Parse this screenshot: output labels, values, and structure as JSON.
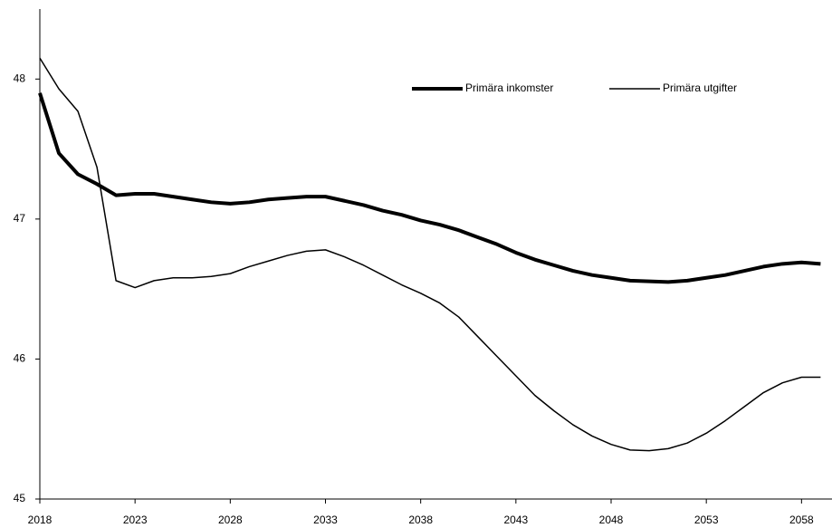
{
  "chart_data": {
    "type": "line",
    "x": [
      2018,
      2019,
      2020,
      2021,
      2022,
      2023,
      2024,
      2025,
      2026,
      2027,
      2028,
      2029,
      2030,
      2031,
      2032,
      2033,
      2034,
      2035,
      2036,
      2037,
      2038,
      2039,
      2040,
      2041,
      2042,
      2043,
      2044,
      2045,
      2046,
      2047,
      2048,
      2049,
      2050,
      2051,
      2052,
      2053,
      2054,
      2055,
      2056,
      2057,
      2058,
      2059
    ],
    "series": [
      {
        "name": "Primära inkomster",
        "color": "#000000",
        "width": 4,
        "values": [
          47.9,
          47.47,
          47.32,
          47.25,
          47.17,
          47.18,
          47.18,
          47.16,
          47.14,
          47.12,
          47.11,
          47.12,
          47.14,
          47.15,
          47.16,
          47.16,
          47.13,
          47.1,
          47.06,
          47.03,
          46.99,
          46.96,
          46.92,
          46.87,
          46.82,
          46.76,
          46.71,
          46.67,
          46.63,
          46.6,
          46.58,
          46.56,
          46.555,
          46.55,
          46.56,
          46.58,
          46.6,
          46.63,
          46.66,
          46.68,
          46.69,
          46.68
        ]
      },
      {
        "name": "Primära utgifter",
        "color": "#000000",
        "width": 1.5,
        "values": [
          48.15,
          47.93,
          47.77,
          47.37,
          46.56,
          46.51,
          46.56,
          46.58,
          46.58,
          46.59,
          46.61,
          46.66,
          46.7,
          46.74,
          46.77,
          46.78,
          46.73,
          46.67,
          46.6,
          46.53,
          46.47,
          46.4,
          46.3,
          46.16,
          46.02,
          45.88,
          45.74,
          45.63,
          45.53,
          45.45,
          45.39,
          45.35,
          45.345,
          45.36,
          45.4,
          45.47,
          45.56,
          45.66,
          45.76,
          45.83,
          45.87,
          45.87
        ]
      }
    ],
    "xlim": [
      2018,
      2059.6
    ],
    "xticks": [
      2018,
      2023,
      2028,
      2033,
      2038,
      2043,
      2048,
      2053,
      2058
    ],
    "ylim": [
      45,
      48.5
    ],
    "yticks": [
      45,
      46,
      47,
      48
    ]
  }
}
